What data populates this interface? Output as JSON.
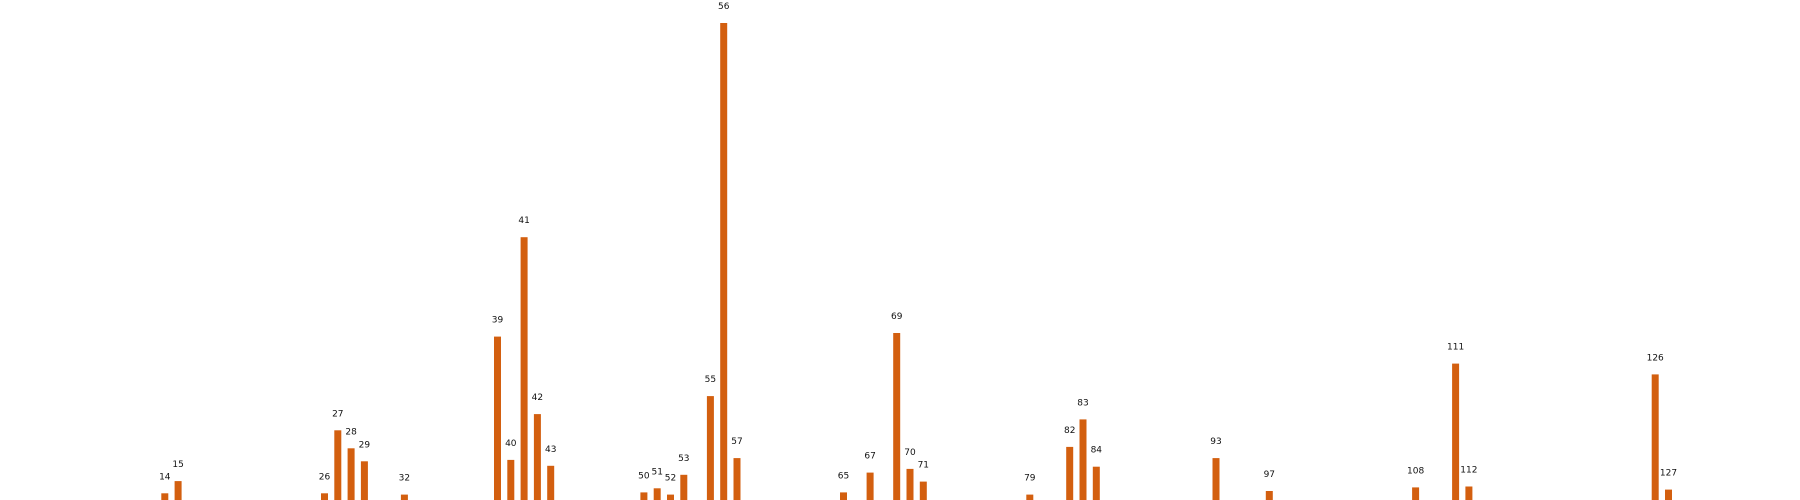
{
  "chart_data": {
    "type": "bar",
    "title": "",
    "xlabel": "",
    "ylabel": "",
    "axes_visible": false,
    "grid": false,
    "color": "#d35f0f",
    "data_labels": "category",
    "xlim": [
      8,
      132
    ],
    "ylim": [
      0,
      10.6
    ],
    "bars": [
      {
        "x": 14,
        "label": "14",
        "value": 0.15
      },
      {
        "x": 15,
        "label": "15",
        "value": 0.42
      },
      {
        "x": 26,
        "label": "26",
        "value": 0.15
      },
      {
        "x": 27,
        "label": "27",
        "value": 1.55
      },
      {
        "x": 28,
        "label": "28",
        "value": 1.15
      },
      {
        "x": 29,
        "label": "29",
        "value": 0.86
      },
      {
        "x": 32,
        "label": "32",
        "value": 0.12
      },
      {
        "x": 39,
        "label": "39",
        "value": 3.63
      },
      {
        "x": 40,
        "label": "40",
        "value": 0.89
      },
      {
        "x": 41,
        "label": "41",
        "value": 5.84
      },
      {
        "x": 42,
        "label": "42",
        "value": 1.91
      },
      {
        "x": 43,
        "label": "43",
        "value": 0.76
      },
      {
        "x": 50,
        "label": "50",
        "value": 0.17
      },
      {
        "x": 51,
        "label": "51",
        "value": 0.26
      },
      {
        "x": 52,
        "label": "52",
        "value": 0.12
      },
      {
        "x": 53,
        "label": "53",
        "value": 0.56
      },
      {
        "x": 55,
        "label": "55",
        "value": 2.31
      },
      {
        "x": 56,
        "label": "56",
        "value": 10.6
      },
      {
        "x": 57,
        "label": "57",
        "value": 0.93
      },
      {
        "x": 65,
        "label": "65",
        "value": 0.17
      },
      {
        "x": 67,
        "label": "67",
        "value": 0.61
      },
      {
        "x": 69,
        "label": "69",
        "value": 3.71
      },
      {
        "x": 70,
        "label": "70",
        "value": 0.69
      },
      {
        "x": 71,
        "label": "71",
        "value": 0.41
      },
      {
        "x": 79,
        "label": "79",
        "value": 0.12
      },
      {
        "x": 82,
        "label": "82",
        "value": 1.18
      },
      {
        "x": 83,
        "label": "83",
        "value": 1.79
      },
      {
        "x": 84,
        "label": "84",
        "value": 0.74
      },
      {
        "x": 93,
        "label": "93",
        "value": 0.93
      },
      {
        "x": 97,
        "label": "97",
        "value": 0.2
      },
      {
        "x": 108,
        "label": "108",
        "value": 0.28
      },
      {
        "x": 111,
        "label": "111",
        "value": 3.03
      },
      {
        "x": 112,
        "label": "112",
        "value": 0.3
      },
      {
        "x": 126,
        "label": "126",
        "value": 2.79
      },
      {
        "x": 127,
        "label": "127",
        "value": 0.23
      }
    ]
  }
}
